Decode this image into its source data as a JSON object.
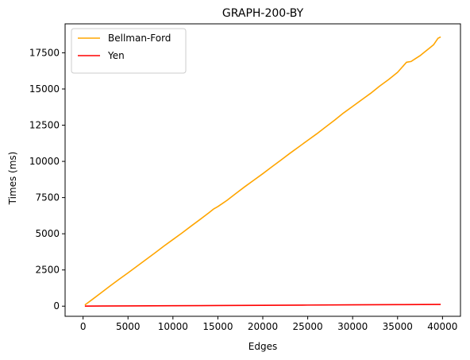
{
  "chart_data": {
    "type": "line",
    "title": "GRAPH-200-BY",
    "xlabel": "Edges",
    "ylabel": "Times (ms)",
    "xlim": [
      -2000,
      42000
    ],
    "ylim": [
      -700,
      19500
    ],
    "xticks": [
      0,
      5000,
      10000,
      15000,
      20000,
      25000,
      30000,
      35000,
      40000
    ],
    "xtick_labels": [
      "0",
      "5000",
      "10000",
      "15000",
      "20000",
      "25000",
      "30000",
      "35000",
      "40000"
    ],
    "yticks": [
      0,
      2500,
      5000,
      7500,
      10000,
      12500,
      15000,
      17500
    ],
    "ytick_labels": [
      "0",
      "2500",
      "5000",
      "7500",
      "10000",
      "12500",
      "15000",
      "17500"
    ],
    "grid": false,
    "legend_position": "upper-left",
    "series": [
      {
        "name": "Bellman-Ford",
        "color": "#ffa500",
        "x": [
          200,
          1000,
          2000,
          3000,
          4000,
          5000,
          6000,
          7000,
          8000,
          9000,
          10000,
          11000,
          12000,
          13000,
          14000,
          14500,
          15000,
          16000,
          17000,
          18000,
          19000,
          20000,
          21000,
          22000,
          23000,
          24000,
          25000,
          26000,
          27000,
          28000,
          29000,
          30000,
          31000,
          32000,
          33000,
          34000,
          35000,
          35500,
          36000,
          36500,
          37000,
          37500,
          38000,
          38500,
          39000,
          39500,
          39800
        ],
        "values": [
          80,
          450,
          920,
          1390,
          1850,
          2300,
          2760,
          3220,
          3680,
          4150,
          4600,
          5050,
          5520,
          5980,
          6450,
          6700,
          6880,
          7300,
          7780,
          8250,
          8700,
          9150,
          9620,
          10080,
          10550,
          11000,
          11450,
          11900,
          12380,
          12850,
          13350,
          13800,
          14250,
          14700,
          15200,
          15650,
          16150,
          16500,
          16850,
          16900,
          17100,
          17300,
          17550,
          17800,
          18050,
          18500,
          18600
        ]
      },
      {
        "name": "Yen",
        "color": "#ff0000",
        "x": [
          200,
          5000,
          10000,
          15000,
          20000,
          25000,
          30000,
          35000,
          39800
        ],
        "values": [
          5,
          15,
          30,
          45,
          60,
          75,
          90,
          105,
          120
        ]
      }
    ]
  },
  "colors": {
    "axis": "#000000",
    "background": "#ffffff"
  }
}
